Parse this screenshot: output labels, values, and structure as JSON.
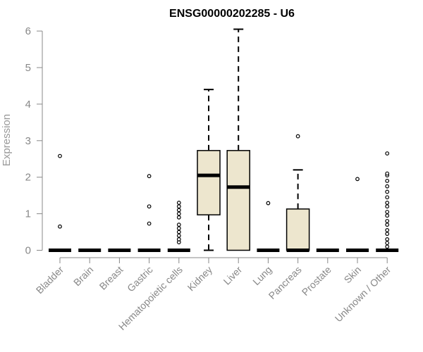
{
  "chart_data": {
    "type": "boxplot",
    "title": "ENSG00000202285 - U6",
    "ylabel": "Expression",
    "xlabel": "",
    "ylim": [
      0,
      6
    ],
    "yticks": [
      0,
      1,
      2,
      3,
      4,
      5,
      6
    ],
    "grid": false,
    "colors": {
      "box_fill": "#ede6ce",
      "stroke": "#000000",
      "axis": "#888888"
    },
    "categories": [
      "Bladder",
      "Brain",
      "Breast",
      "Gastric",
      "Hematopoietic cells",
      "Kidney",
      "Liver",
      "Lung",
      "Pancreas",
      "Prostate",
      "Skin",
      "Unknown / Other"
    ],
    "boxes": [
      {
        "category": "Bladder",
        "q1": 0,
        "median": 0,
        "q3": 0,
        "whisker_low": 0,
        "whisker_high": 0,
        "outliers": [
          0.65,
          2.58
        ]
      },
      {
        "category": "Brain",
        "q1": 0,
        "median": 0,
        "q3": 0,
        "whisker_low": 0,
        "whisker_high": 0,
        "outliers": []
      },
      {
        "category": "Breast",
        "q1": 0,
        "median": 0,
        "q3": 0,
        "whisker_low": 0,
        "whisker_high": 0,
        "outliers": []
      },
      {
        "category": "Gastric",
        "q1": 0,
        "median": 0,
        "q3": 0,
        "whisker_low": 0,
        "whisker_high": 0,
        "outliers": [
          0.73,
          1.2,
          2.03
        ]
      },
      {
        "category": "Hematopoietic cells",
        "q1": 0,
        "median": 0,
        "q3": 0,
        "whisker_low": 0,
        "whisker_high": 0,
        "outliers": [
          0.22,
          0.3,
          0.4,
          0.5,
          0.6,
          0.7,
          0.9,
          1.0,
          1.1,
          1.2,
          1.3
        ]
      },
      {
        "category": "Kidney",
        "q1": 0.97,
        "median": 2.05,
        "q3": 2.73,
        "whisker_low": 0,
        "whisker_high": 4.4,
        "outliers": []
      },
      {
        "category": "Liver",
        "q1": 0,
        "median": 1.73,
        "q3": 2.73,
        "whisker_low": 0,
        "whisker_high": 6.05,
        "outliers": []
      },
      {
        "category": "Lung",
        "q1": 0,
        "median": 0,
        "q3": 0,
        "whisker_low": 0,
        "whisker_high": 0,
        "outliers": [
          1.29
        ]
      },
      {
        "category": "Pancreas",
        "q1": 0,
        "median": 0,
        "q3": 1.13,
        "whisker_low": 0,
        "whisker_high": 2.2,
        "outliers": [
          3.12
        ]
      },
      {
        "category": "Prostate",
        "q1": 0,
        "median": 0,
        "q3": 0,
        "whisker_low": 0,
        "whisker_high": 0,
        "outliers": []
      },
      {
        "category": "Skin",
        "q1": 0,
        "median": 0,
        "q3": 0,
        "whisker_low": 0,
        "whisker_high": 0,
        "outliers": [
          1.95
        ]
      },
      {
        "category": "Unknown / Other",
        "q1": 0,
        "median": 0,
        "q3": 0,
        "whisker_low": 0,
        "whisker_high": 0,
        "outliers": [
          0.1,
          0.2,
          0.3,
          0.45,
          0.55,
          0.7,
          0.8,
          0.95,
          1.05,
          1.2,
          1.3,
          1.45,
          1.6,
          1.75,
          1.9,
          2.05,
          2.1,
          2.65
        ]
      }
    ]
  }
}
